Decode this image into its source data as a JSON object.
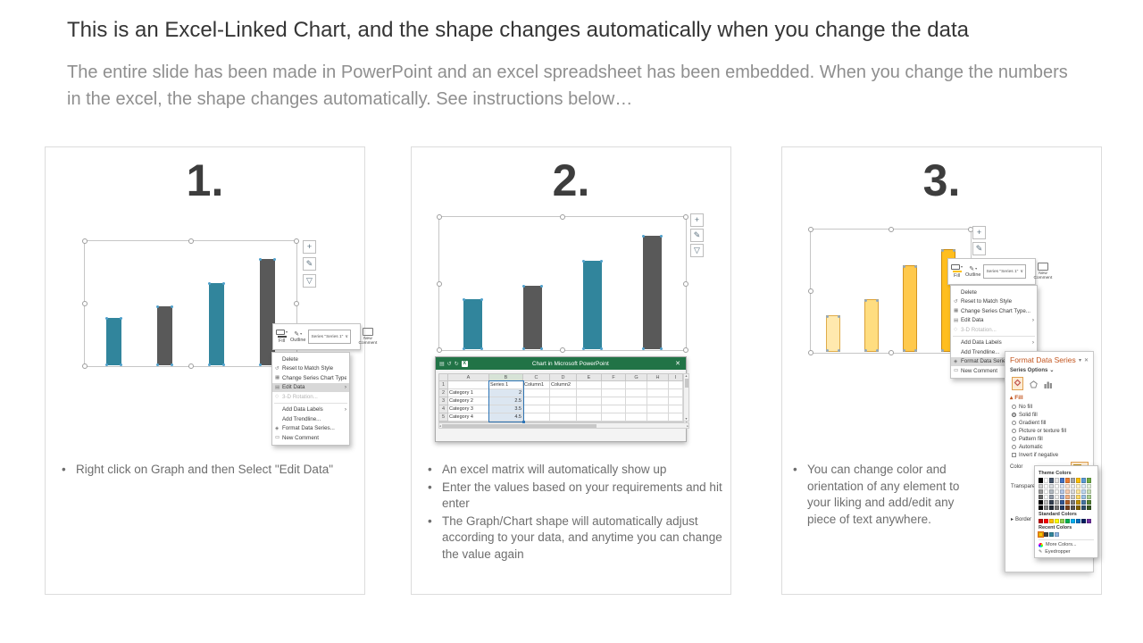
{
  "header": {
    "title": "This is an Excel-Linked Chart, and the shape changes automatically when you change the data",
    "subtitle": "The entire slide has been made in PowerPoint and an excel spreadsheet has been embedded. When you change the numbers in the excel, the shape changes automatically. See instructions below…"
  },
  "panels": [
    {
      "number": "1.",
      "bullets": [
        "Right click on Graph and then Select \"Edit Data\""
      ]
    },
    {
      "number": "2.",
      "bullets": [
        "An excel matrix will automatically show up",
        "Enter the values based on your requirements and hit enter",
        "The Graph/Chart shape will automatically adjust according to your data, and anytime you can change the value again"
      ]
    },
    {
      "number": "3.",
      "bullets": [
        "You can change color and orientation of any element to your liking and add/edit any piece of text anywhere."
      ]
    }
  ],
  "chart_data": [
    {
      "type": "bar",
      "categories": [
        "Category 1",
        "Category 2",
        "Category 3",
        "Category 4"
      ],
      "values": [
        2,
        2.5,
        3.5,
        4.5
      ],
      "ymax": 5,
      "colors": [
        "#31859C",
        "#595959",
        "#31859C",
        "#595959"
      ],
      "handle_color": "#4E9FCB"
    },
    {
      "type": "bar",
      "categories": [
        "Category 1",
        "Category 2",
        "Category 3",
        "Category 4"
      ],
      "values": [
        2,
        2.5,
        3.5,
        4.5
      ],
      "ymax": 5,
      "colors": [
        "#31859C",
        "#595959",
        "#31859C",
        "#595959"
      ],
      "handle_color": "#4E9FCB"
    },
    {
      "type": "bar",
      "categories": [
        "Category 1",
        "Category 2",
        "Category 3",
        "Category 4"
      ],
      "values": [
        1.6,
        2.3,
        3.8,
        4.5
      ],
      "ymax": 5,
      "colors": [
        "#FFE9AE",
        "#FFDD80",
        "#FFC94C",
        "#FFBE1F"
      ],
      "border_colors": [
        "#E0AC4A",
        "#DCA238",
        "#D49420",
        "#C98A10"
      ],
      "handle_color": "#93A9BD"
    }
  ],
  "mini_toolbar": {
    "fill_label": "Fill",
    "outline_label": "Outline",
    "series_selector": "Series \"Series 1\"",
    "new_comment_label": "New Comment"
  },
  "context_menu": {
    "items": [
      {
        "label": "Delete",
        "icon": ""
      },
      {
        "label": "Reset to Match Style",
        "icon": "↺",
        "icon_name": "reset-style"
      },
      {
        "label": "Change Series Chart Type...",
        "icon": "▦",
        "icon_name": "chart-type"
      },
      {
        "label": "Edit Data",
        "icon": "▤",
        "icon_name": "edit-data",
        "arrow": true
      },
      {
        "label": "3-D Rotation...",
        "icon": "◇",
        "icon_name": "rotation",
        "disabled": true,
        "sep_after": true
      },
      {
        "label": "Add Data Labels",
        "icon": "",
        "arrow": true
      },
      {
        "label": "Add Trendline...",
        "icon": ""
      },
      {
        "label": "Format Data Series...",
        "icon": "◈",
        "icon_name": "format-series"
      },
      {
        "label": "New Comment",
        "icon": "▭",
        "icon_name": "comment"
      }
    ]
  },
  "excel": {
    "window_title": "Chart in Microsoft PowerPoint",
    "col_headers": [
      "A",
      "B",
      "C",
      "D",
      "E",
      "F",
      "G",
      "H",
      "I"
    ],
    "row_numbers": [
      "1",
      "2",
      "3",
      "4",
      "5"
    ],
    "header_row": [
      "Series 1",
      "Column1",
      "Column2"
    ],
    "categories": [
      "Category 1",
      "Category 2",
      "Category 3",
      "Category 4"
    ],
    "values": [
      "2",
      "2.5",
      "3.5",
      "4.5"
    ]
  },
  "format_panel": {
    "title": "Format Data Series",
    "series_options_label": "Series Options",
    "fill_section_label": "Fill",
    "fill_options": [
      "No fill",
      "Solid fill",
      "Gradient fill",
      "Picture or texture fill",
      "Pattern fill",
      "Automatic"
    ],
    "selected_fill": "Solid fill",
    "invert_label": "Invert if negative",
    "color_label": "Color",
    "transparency_label": "Transparency",
    "border_section_label": "Border",
    "accent_color": "#C2531C",
    "color_picker": {
      "theme_label": "Theme Colors",
      "theme_colors": [
        "#000000",
        "#FFFFFF",
        "#44546A",
        "#E7E6E6",
        "#4472C4",
        "#ED7D31",
        "#A5A5A5",
        "#FFC000",
        "#5B9BD5",
        "#70AD47"
      ],
      "standard_label": "Standard Colors",
      "standard_colors": [
        "#C00000",
        "#FF0000",
        "#FFC000",
        "#FFFF00",
        "#92D050",
        "#00B050",
        "#00B0F0",
        "#0070C0",
        "#002060",
        "#7030A0"
      ],
      "recent_label": "Recent Colors",
      "recent_colors": [
        "#FFC000",
        "#404040",
        "#31859C",
        "#8DB4E2"
      ],
      "more_colors_label": "More Colors...",
      "eyedropper_label": "Eyedropper"
    }
  },
  "icons": {
    "plus": "+",
    "brush": "✎",
    "funnel": "▽",
    "close": "✕",
    "caret_down": "▾",
    "dropdown": "∨",
    "chevron_down": "⌄",
    "submenu": "›",
    "undo": "↺",
    "redo": "↻",
    "save": "▤",
    "excel_logo": "X",
    "fill_triangle": "▴",
    "expand": "▸",
    "up": "▲",
    "down": "▼",
    "left": "◂",
    "right": "▸"
  }
}
